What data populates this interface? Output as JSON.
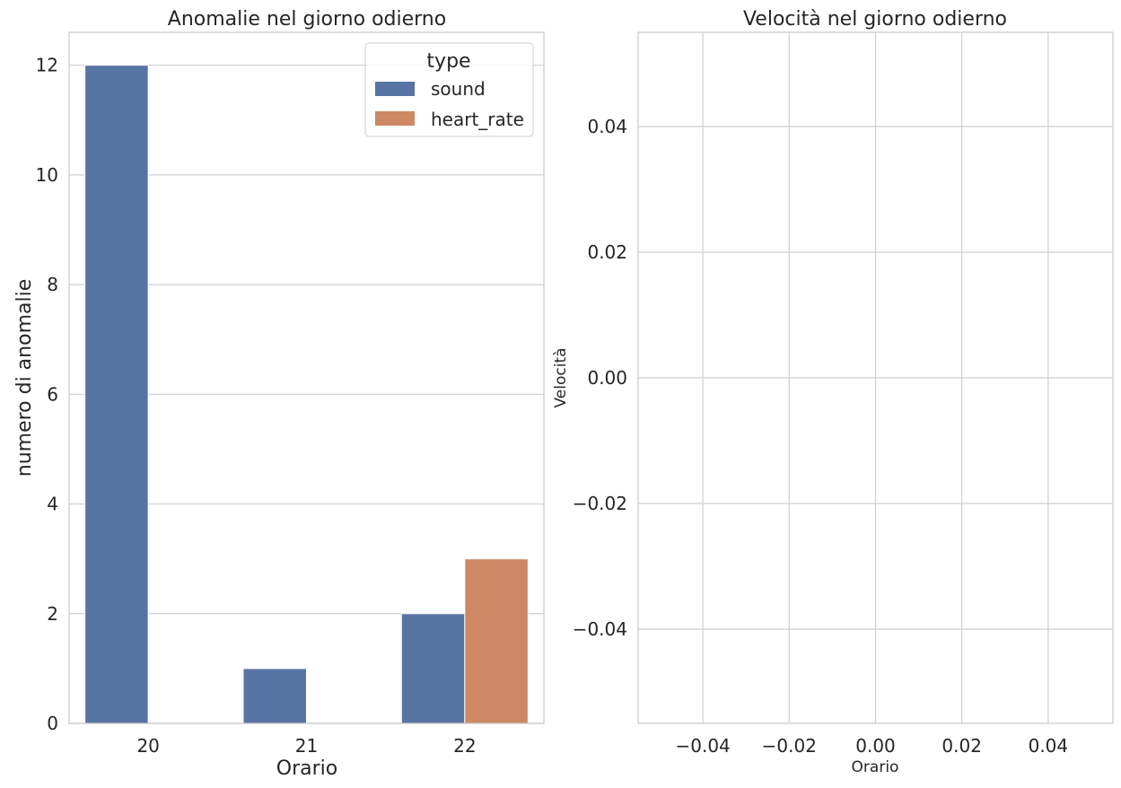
{
  "colors": {
    "sound": "#5874a4",
    "heart_rate": "#cc8963",
    "grid": "#cfcfcf",
    "spine": "#cccccc",
    "text": "#262626"
  },
  "chart_data": [
    {
      "type": "bar",
      "title": "Anomalie nel giorno odierno",
      "xlabel": "Orario",
      "ylabel": "numero di anomalie",
      "categories": [
        "20",
        "21",
        "22"
      ],
      "series": [
        {
          "name": "sound",
          "values": [
            12,
            1,
            2
          ]
        },
        {
          "name": "heart_rate",
          "values": [
            0,
            0,
            3
          ]
        }
      ],
      "ylim": [
        0,
        12.6
      ],
      "yticks": [
        "0",
        "2",
        "4",
        "6",
        "8",
        "10",
        "12"
      ],
      "grid": true,
      "legend": {
        "title": "type",
        "placement": "top-right",
        "entries": [
          "sound",
          "heart_rate"
        ]
      }
    },
    {
      "type": "line",
      "title": "Velocità nel giorno odierno",
      "xlabel": "Orario",
      "ylabel": "Velocità",
      "series": [],
      "xlim": [
        -0.055,
        0.055
      ],
      "ylim": [
        -0.055,
        0.055
      ],
      "xticks": [
        "−0.04",
        "−0.02",
        "0.00",
        "0.02",
        "0.04"
      ],
      "yticks": [
        "−0.04",
        "−0.02",
        "0.00",
        "0.02",
        "0.04"
      ],
      "grid": true
    }
  ]
}
